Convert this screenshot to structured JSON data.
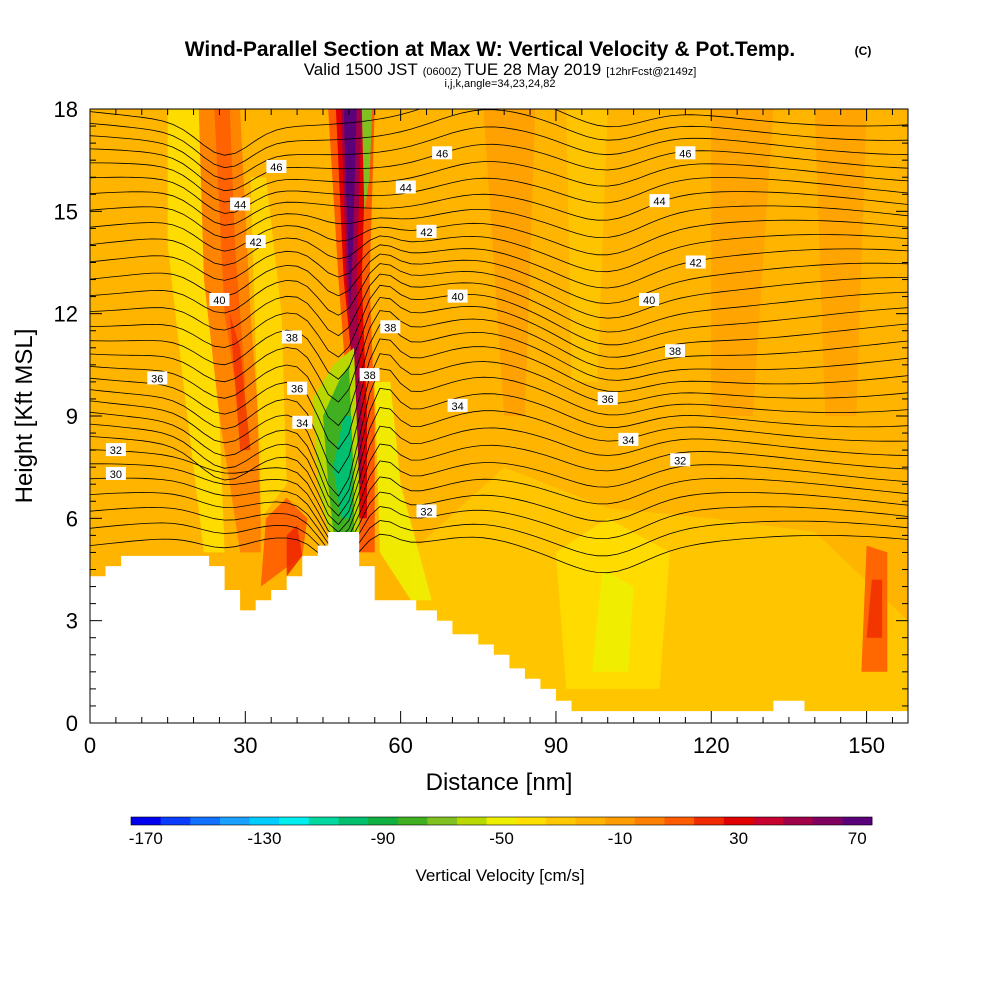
{
  "chart_data": {
    "type": "heatmap",
    "title": "Wind-Parallel Section at Max W: Vertical Velocity & Pot.Temp.",
    "title_mark": "(C)",
    "subtitle_valid": "Valid 1500 JST",
    "subtitle_utc": "(0600Z)",
    "subtitle_date": "TUE 28 May 2019",
    "subtitle_fcst": "[12hrFcst@2149z]",
    "subtitle_ijk": "i,j,k,angle=34,23,24,82",
    "xlabel": "Distance [nm]",
    "ylabel": "Height [Kft MSL]",
    "xlim": [
      0,
      158
    ],
    "ylim": [
      0,
      18
    ],
    "x_ticks": [
      "0",
      "30",
      "60",
      "90",
      "120",
      "150"
    ],
    "y_ticks": [
      "0",
      "3",
      "6",
      "9",
      "12",
      "15",
      "18"
    ],
    "colorbar_label": "Vertical Velocity [cm/s]",
    "colorbar_tick_labels": [
      "-170",
      "-130",
      "-90",
      "-50",
      "-10",
      "30",
      "70"
    ],
    "colorbar_colors": [
      "#0000ee",
      "#0a3cff",
      "#1070ff",
      "#1aa0ff",
      "#00ccff",
      "#00eeee",
      "#00d8a0",
      "#00c070",
      "#10b040",
      "#40b020",
      "#80c020",
      "#b8d800",
      "#eeee00",
      "#ffe000",
      "#ffc800",
      "#ffb400",
      "#ff9c00",
      "#ff8000",
      "#ff5c00",
      "#f02a00",
      "#e00000",
      "#c80030",
      "#a00048",
      "#800060",
      "#5a0078"
    ],
    "colorbar_min": -175,
    "colorbar_step": 10,
    "potential_temperature_labels": [
      {
        "x": 5,
        "y": 7.3,
        "text": "30"
      },
      {
        "x": 5,
        "y": 8.0,
        "text": "32"
      },
      {
        "x": 65,
        "y": 6.2,
        "text": "32"
      },
      {
        "x": 114,
        "y": 7.7,
        "text": "32"
      },
      {
        "x": 41,
        "y": 8.8,
        "text": "34"
      },
      {
        "x": 71,
        "y": 9.3,
        "text": "34"
      },
      {
        "x": 104,
        "y": 8.3,
        "text": "34"
      },
      {
        "x": 13,
        "y": 10.1,
        "text": "36"
      },
      {
        "x": 40,
        "y": 9.8,
        "text": "36"
      },
      {
        "x": 100,
        "y": 9.5,
        "text": "36"
      },
      {
        "x": 54,
        "y": 10.2,
        "text": "38"
      },
      {
        "x": 39,
        "y": 11.3,
        "text": "38"
      },
      {
        "x": 58,
        "y": 11.6,
        "text": "38"
      },
      {
        "x": 113,
        "y": 10.9,
        "text": "38"
      },
      {
        "x": 25,
        "y": 12.4,
        "text": "40"
      },
      {
        "x": 71,
        "y": 12.5,
        "text": "40"
      },
      {
        "x": 108,
        "y": 12.4,
        "text": "40"
      },
      {
        "x": 32,
        "y": 14.1,
        "text": "42"
      },
      {
        "x": 65,
        "y": 14.4,
        "text": "42"
      },
      {
        "x": 117,
        "y": 13.5,
        "text": "42"
      },
      {
        "x": 29,
        "y": 15.2,
        "text": "44"
      },
      {
        "x": 61,
        "y": 15.7,
        "text": "44"
      },
      {
        "x": 110,
        "y": 15.3,
        "text": "44"
      },
      {
        "x": 36,
        "y": 16.3,
        "text": "46"
      },
      {
        "x": 68,
        "y": 16.7,
        "text": "46"
      },
      {
        "x": 115,
        "y": 16.7,
        "text": "46"
      }
    ],
    "terrain_outline": [
      [
        0,
        4.3
      ],
      [
        3,
        4.3
      ],
      [
        3,
        4.6
      ],
      [
        6,
        4.6
      ],
      [
        6,
        4.9
      ],
      [
        23,
        4.9
      ],
      [
        23,
        4.6
      ],
      [
        26,
        4.6
      ],
      [
        26,
        3.9
      ],
      [
        29,
        3.9
      ],
      [
        29,
        3.3
      ],
      [
        32,
        3.3
      ],
      [
        32,
        3.6
      ],
      [
        35,
        3.6
      ],
      [
        35,
        3.9
      ],
      [
        38,
        3.9
      ],
      [
        38,
        4.3
      ],
      [
        41,
        4.3
      ],
      [
        41,
        4.9
      ],
      [
        44,
        4.9
      ],
      [
        44,
        5.2
      ],
      [
        46,
        5.2
      ],
      [
        46,
        5.6
      ],
      [
        52,
        5.6
      ],
      [
        52,
        4.6
      ],
      [
        55,
        4.6
      ],
      [
        55,
        3.6
      ],
      [
        63,
        3.6
      ],
      [
        63,
        3.3
      ],
      [
        67,
        3.3
      ],
      [
        67,
        3.0
      ],
      [
        70,
        3.0
      ],
      [
        70,
        2.6
      ],
      [
        75,
        2.6
      ],
      [
        75,
        2.3
      ],
      [
        78,
        2.3
      ],
      [
        78,
        2.0
      ],
      [
        81,
        2.0
      ],
      [
        81,
        1.6
      ],
      [
        84,
        1.6
      ],
      [
        84,
        1.3
      ],
      [
        87,
        1.3
      ],
      [
        87,
        1.0
      ],
      [
        90,
        1.0
      ],
      [
        90,
        0.65
      ],
      [
        93,
        0.65
      ],
      [
        93,
        0.35
      ],
      [
        132,
        0.35
      ],
      [
        132,
        0.65
      ],
      [
        138,
        0.65
      ],
      [
        138,
        0.35
      ],
      [
        158,
        0.35
      ]
    ]
  }
}
